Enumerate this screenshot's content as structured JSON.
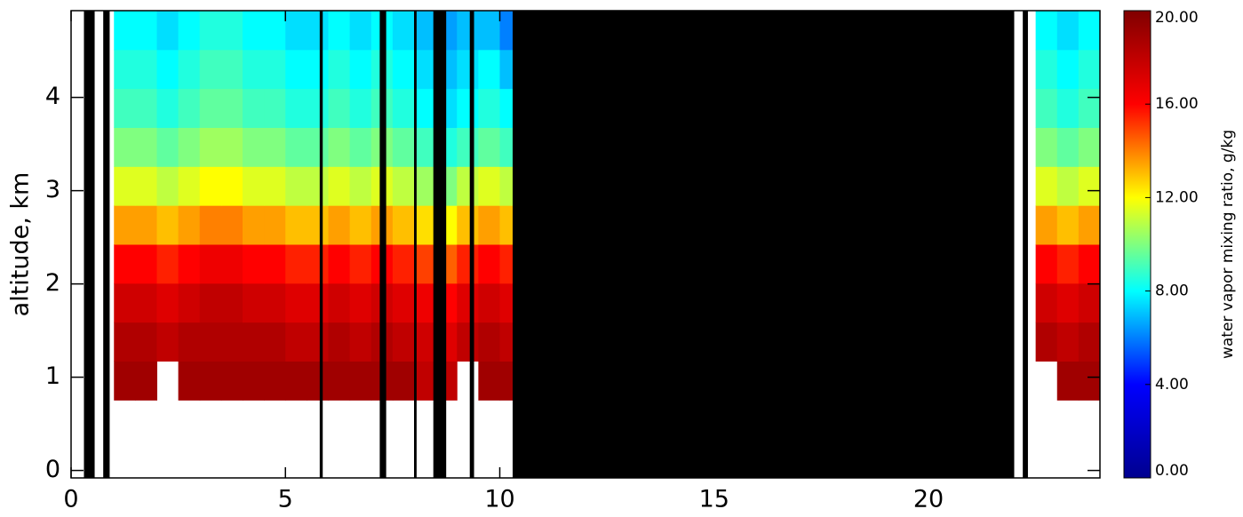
{
  "chart_data": {
    "type": "heatmap",
    "ylabel": "altitude, km",
    "colorbar_label": "water vapor mixing ratio, g/kg",
    "xlim": [
      0,
      24
    ],
    "xticks": [
      0,
      5,
      10,
      15,
      20
    ],
    "ylim": [
      -0.08,
      4.93
    ],
    "yticks": [
      0,
      1,
      2,
      3,
      4
    ],
    "zlim": [
      0,
      20
    ],
    "zticks": [
      {
        "value": 0,
        "label": "0.00"
      },
      {
        "value": 4,
        "label": "4.00"
      },
      {
        "value": 8,
        "label": "8.00"
      },
      {
        "value": 12,
        "label": "12.00"
      },
      {
        "value": 16,
        "label": "16.00"
      },
      {
        "value": 20,
        "label": "20.00"
      }
    ],
    "colorscale": [
      "#00008f",
      "#0000ff",
      "#00ffff",
      "#ffff00",
      "#ff0000",
      "#800000"
    ],
    "masked_color": "#000000",
    "masked_intervals": [
      [
        0.3,
        0.55
      ],
      [
        0.75,
        0.9
      ],
      [
        5.8,
        5.87
      ],
      [
        7.2,
        7.35
      ],
      [
        8.0,
        8.06
      ],
      [
        8.45,
        8.75
      ],
      [
        9.3,
        9.4
      ],
      [
        10.3,
        22.0
      ],
      [
        22.2,
        22.32
      ]
    ],
    "z": [
      [
        null,
        null,
        null,
        null,
        null,
        null,
        null,
        null,
        null,
        null,
        null,
        null,
        null,
        null,
        null,
        null,
        null,
        null,
        null,
        null,
        null,
        null,
        null,
        null,
        null,
        null,
        null,
        null,
        null,
        null,
        null,
        null,
        null,
        null,
        null,
        null,
        null,
        null,
        null,
        null,
        null,
        null,
        null,
        null,
        null,
        null,
        null,
        null
      ],
      [
        null,
        null,
        null,
        null,
        null,
        null,
        null,
        null,
        null,
        null,
        null,
        null,
        null,
        null,
        null,
        null,
        null,
        null,
        null,
        null,
        null,
        null,
        null,
        null,
        null,
        null,
        null,
        null,
        null,
        null,
        null,
        null,
        null,
        null,
        null,
        null,
        null,
        null,
        null,
        null,
        null,
        null,
        null,
        null,
        null,
        null,
        null,
        null
      ],
      [
        null,
        null,
        19,
        19,
        null,
        19,
        19,
        19,
        19,
        19,
        19,
        19,
        19,
        19,
        19,
        19,
        18,
        18,
        null,
        19,
        19,
        null,
        null,
        null,
        null,
        null,
        null,
        null,
        null,
        null,
        null,
        null,
        null,
        null,
        null,
        null,
        null,
        null,
        null,
        null,
        null,
        null,
        null,
        null,
        null,
        null,
        19,
        19
      ],
      [
        null,
        null,
        18.5,
        18.5,
        18,
        18.5,
        18.5,
        18.5,
        18.5,
        18.5,
        18,
        18,
        18.5,
        18,
        18.5,
        18,
        17.5,
        17,
        18,
        18.5,
        18,
        null,
        null,
        null,
        null,
        null,
        null,
        null,
        null,
        null,
        null,
        null,
        null,
        null,
        null,
        null,
        null,
        null,
        null,
        null,
        null,
        null,
        null,
        null,
        null,
        18.5,
        18,
        18.5
      ],
      [
        null,
        null,
        17.5,
        17.5,
        17,
        17.5,
        18,
        18,
        17.5,
        17.5,
        17,
        17,
        17.5,
        17,
        17.5,
        17,
        16.5,
        16,
        17,
        17.5,
        17,
        null,
        null,
        null,
        null,
        null,
        null,
        null,
        null,
        null,
        null,
        null,
        null,
        null,
        null,
        null,
        null,
        null,
        null,
        null,
        null,
        null,
        null,
        null,
        null,
        17.5,
        17,
        17.5
      ],
      [
        null,
        null,
        16,
        16,
        15.5,
        16,
        16.5,
        16.5,
        16,
        16,
        15.5,
        15.5,
        16,
        15.5,
        16,
        15.5,
        15,
        14.5,
        15.5,
        16,
        15.5,
        null,
        null,
        null,
        null,
        null,
        null,
        null,
        null,
        null,
        null,
        null,
        null,
        null,
        null,
        null,
        null,
        null,
        null,
        null,
        null,
        null,
        null,
        null,
        null,
        16,
        15.5,
        16
      ],
      [
        null,
        null,
        13.5,
        13.5,
        13,
        13.5,
        14,
        14,
        13.5,
        13.5,
        13,
        13,
        13.5,
        13,
        13.5,
        13,
        12.5,
        12,
        13,
        13.5,
        13,
        null,
        null,
        null,
        null,
        null,
        null,
        null,
        null,
        null,
        null,
        null,
        null,
        null,
        null,
        null,
        null,
        null,
        null,
        null,
        null,
        null,
        null,
        null,
        null,
        13.5,
        13,
        13.5
      ],
      [
        null,
        null,
        11.5,
        11.5,
        11,
        11.5,
        12,
        12,
        11.5,
        11.5,
        11,
        11,
        11.5,
        11,
        11.5,
        11,
        10.5,
        10,
        11,
        11.5,
        11,
        null,
        null,
        null,
        null,
        null,
        null,
        null,
        null,
        null,
        null,
        null,
        null,
        null,
        null,
        null,
        null,
        null,
        null,
        null,
        null,
        null,
        null,
        null,
        null,
        11.5,
        11,
        11.5
      ],
      [
        null,
        null,
        10,
        10,
        9.5,
        10,
        10.5,
        10.5,
        10,
        10,
        9.5,
        9.5,
        10,
        9.5,
        10,
        9.5,
        9,
        8.5,
        9,
        9.5,
        9,
        null,
        null,
        null,
        null,
        null,
        null,
        null,
        null,
        null,
        null,
        null,
        null,
        null,
        null,
        null,
        null,
        null,
        null,
        null,
        null,
        null,
        null,
        null,
        null,
        10,
        9.5,
        10
      ],
      [
        null,
        null,
        9,
        9,
        8.5,
        9,
        9.5,
        9.5,
        9,
        9,
        8.5,
        8.5,
        9,
        8.5,
        9,
        8.5,
        8,
        7.5,
        8,
        8.5,
        8,
        null,
        null,
        null,
        null,
        null,
        null,
        null,
        null,
        null,
        null,
        null,
        null,
        null,
        null,
        null,
        null,
        null,
        null,
        null,
        null,
        null,
        null,
        null,
        null,
        9,
        8.5,
        9
      ],
      [
        null,
        null,
        8.5,
        8.5,
        8,
        8.5,
        9,
        9,
        8.5,
        8.5,
        8,
        8,
        8.5,
        8,
        8.5,
        8,
        7.5,
        7,
        7.5,
        8,
        7,
        null,
        null,
        null,
        null,
        null,
        null,
        null,
        null,
        null,
        null,
        null,
        null,
        null,
        null,
        null,
        null,
        null,
        null,
        null,
        null,
        null,
        null,
        null,
        null,
        8.5,
        8,
        8.5
      ],
      [
        null,
        null,
        8,
        8,
        7.5,
        8,
        8.5,
        8.5,
        8,
        8,
        7.5,
        7.5,
        8,
        7.5,
        8,
        7.5,
        7,
        6.5,
        7,
        7,
        6,
        null,
        null,
        null,
        null,
        null,
        null,
        null,
        null,
        null,
        null,
        null,
        null,
        null,
        null,
        null,
        null,
        null,
        null,
        null,
        null,
        null,
        null,
        null,
        null,
        8,
        7.5,
        8
      ]
    ]
  }
}
